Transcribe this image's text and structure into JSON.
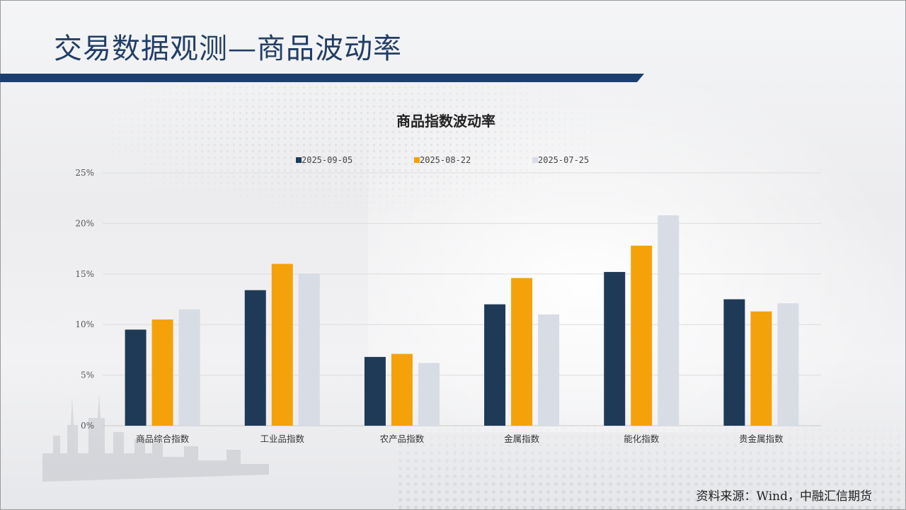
{
  "page": {
    "title": "交易数据观测—商品波动率",
    "source": "资料来源：Wind，中融汇信期货"
  },
  "colors": {
    "title": "#233e66",
    "bar": "#1c3f70"
  },
  "chart_data": {
    "type": "bar",
    "title": "商品指数波动率",
    "xlabel": "",
    "ylabel": "",
    "categories": [
      "商品综合指数",
      "工业品指数",
      "农产品指数",
      "金属指数",
      "能化指数",
      "贵金属指数"
    ],
    "series": [
      {
        "name": "2025-09-05",
        "color": "#1f3a57",
        "values": [
          9.5,
          13.4,
          6.8,
          12.0,
          15.2,
          12.5
        ]
      },
      {
        "name": "2025-08-22",
        "color": "#f5a10a",
        "values": [
          10.5,
          16.0,
          7.1,
          14.6,
          17.8,
          11.3
        ]
      },
      {
        "name": "2025-07-25",
        "color": "#d7dce5",
        "values": [
          11.5,
          15.0,
          6.2,
          11.0,
          20.8,
          12.1
        ]
      }
    ],
    "ylim": [
      0,
      25
    ],
    "yticks": [
      0,
      5,
      10,
      15,
      20,
      25
    ],
    "ytick_format": "percent",
    "legend_position": "top",
    "grid": true
  }
}
